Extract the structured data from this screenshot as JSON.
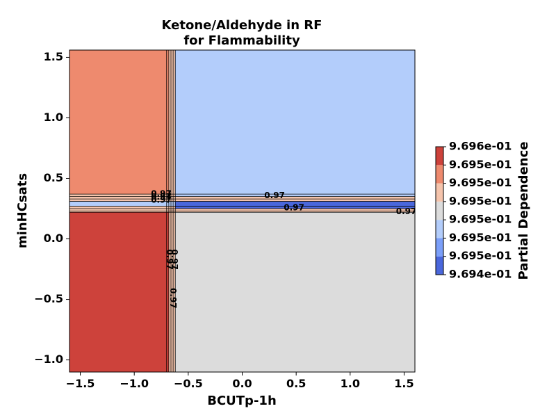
{
  "chart_data": {
    "type": "contour",
    "title_lines": [
      "Ketone/Aldehyde in RF",
      "for Flammability"
    ],
    "xlabel": "BCUTp-1h",
    "ylabel": "minHCsats",
    "xlim": [
      -1.6,
      1.6
    ],
    "ylim": [
      -1.1,
      1.56
    ],
    "xticks": [
      {
        "value": -1.5,
        "label": "−1.5"
      },
      {
        "value": -1.0,
        "label": "−1.0"
      },
      {
        "value": -0.5,
        "label": "−0.5"
      },
      {
        "value": 0.0,
        "label": "0.0"
      },
      {
        "value": 0.5,
        "label": "0.5"
      },
      {
        "value": 1.0,
        "label": "1.0"
      },
      {
        "value": 1.5,
        "label": "1.5"
      }
    ],
    "yticks": [
      {
        "value": -1.0,
        "label": "−1.0"
      },
      {
        "value": -0.5,
        "label": "−0.5"
      },
      {
        "value": 0.0,
        "label": "0.0"
      },
      {
        "value": 0.5,
        "label": "0.5"
      },
      {
        "value": 1.0,
        "label": "1.0"
      },
      {
        "value": 1.5,
        "label": "1.5"
      }
    ],
    "regions": [
      {
        "name": "upper-left-region",
        "x": [
          -1.6,
          -0.68
        ],
        "y": [
          0.37,
          1.56
        ],
        "color": "#ee8a6e"
      },
      {
        "name": "upper-right-region",
        "x": [
          -0.62,
          1.6
        ],
        "y": [
          0.35,
          1.56
        ],
        "color": "#b3cdfb"
      },
      {
        "name": "lower-left-region",
        "x": [
          -1.6,
          -0.68
        ],
        "y": [
          -1.1,
          0.22
        ],
        "color": "#cd423b"
      },
      {
        "name": "lower-right-region",
        "x": [
          -0.62,
          1.6
        ],
        "y": [
          -1.1,
          0.22
        ],
        "color": "#dcdcdc"
      },
      {
        "name": "middle-left-band",
        "x": [
          -1.6,
          -0.62
        ],
        "y": [
          0.27,
          0.31
        ],
        "color": "#b3cdfb"
      },
      {
        "name": "middle-right-band",
        "x": [
          -0.62,
          1.6
        ],
        "y": [
          0.25,
          0.31
        ],
        "color": "#4a67dc"
      }
    ],
    "contour_labels": [
      {
        "text": "0.97",
        "x": -0.75,
        "y": 0.37,
        "rotation": 0
      },
      {
        "text": "0.97",
        "x": -0.75,
        "y": 0.345,
        "rotation": 0
      },
      {
        "text": "0.97",
        "x": -0.75,
        "y": 0.32,
        "rotation": 0
      },
      {
        "text": "0.97",
        "x": 0.3,
        "y": 0.355,
        "rotation": 0
      },
      {
        "text": "0.97",
        "x": 0.48,
        "y": 0.255,
        "rotation": 0
      },
      {
        "text": "0.97",
        "x": 1.52,
        "y": 0.225,
        "rotation": 0
      },
      {
        "text": "0.97",
        "x": -0.675,
        "y": -0.17,
        "rotation": 90
      },
      {
        "text": "0.97",
        "x": -0.63,
        "y": -0.17,
        "rotation": 90
      },
      {
        "text": "0.97",
        "x": -0.645,
        "y": -0.49,
        "rotation": 90
      }
    ],
    "colorbar": {
      "label": "Partial Dependence",
      "colors": [
        "#4a67dc",
        "#7b9ff9",
        "#b3cdfb",
        "#dcdcdc",
        "#f5c4ac",
        "#ee8a6e",
        "#cd423b"
      ],
      "tick_labels": [
        "9.694e-01",
        "9.695e-01",
        "9.695e-01",
        "9.695e-01",
        "9.695e-01",
        "9.695e-01",
        "9.695e-01",
        "9.696e-01"
      ]
    }
  }
}
